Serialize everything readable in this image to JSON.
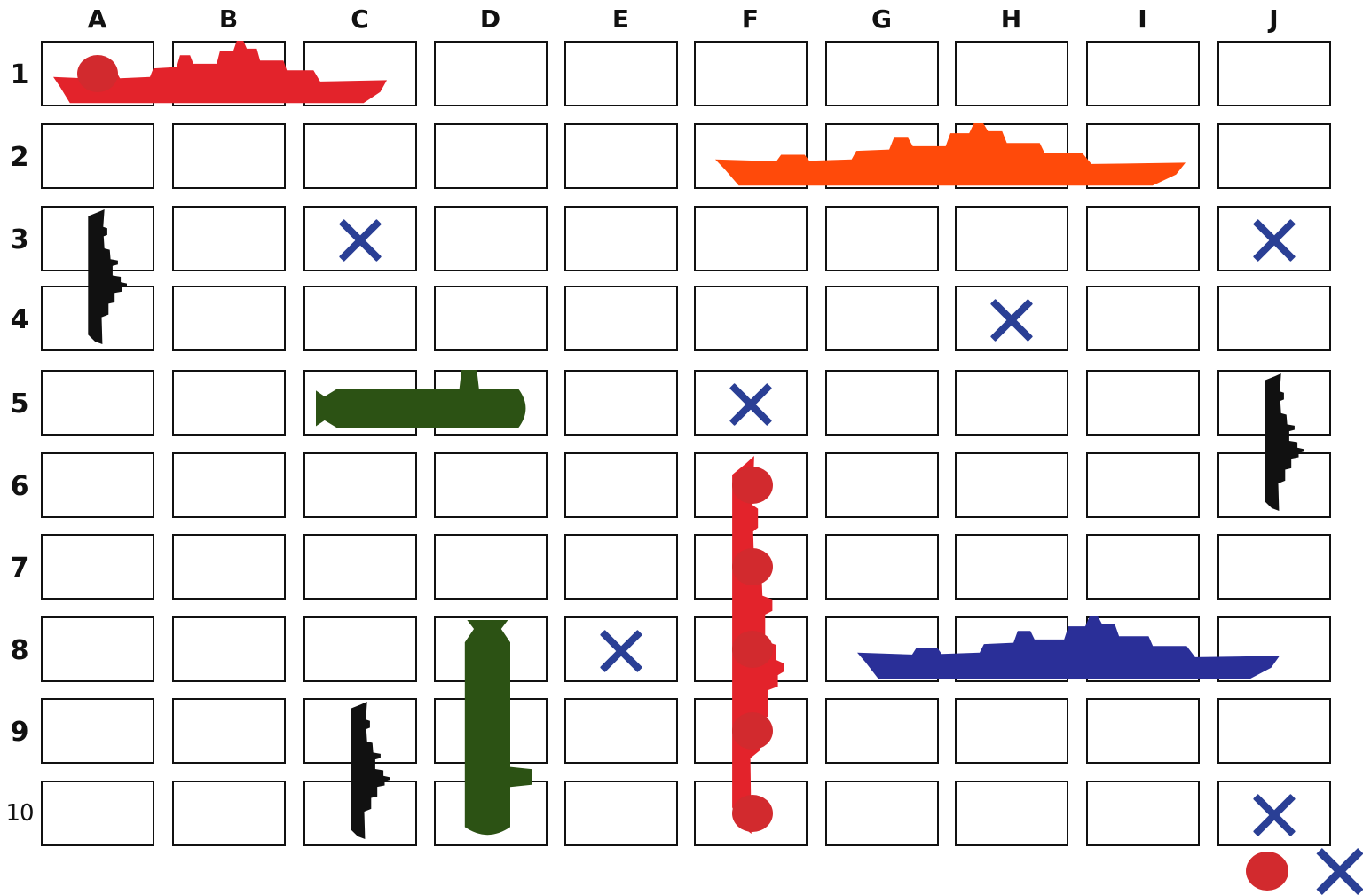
{
  "board": {
    "columns": [
      "A",
      "B",
      "C",
      "D",
      "E",
      "F",
      "G",
      "H",
      "I",
      "J"
    ],
    "rows": [
      "1",
      "2",
      "3",
      "4",
      "5",
      "6",
      "7",
      "8",
      "9",
      "10"
    ]
  },
  "ships": [
    {
      "name": "battleship",
      "color": "#e3232b",
      "cells": [
        "A1",
        "B1",
        "C1"
      ],
      "orientation": "horizontal"
    },
    {
      "name": "carrier",
      "color": "#ff4a0a",
      "cells": [
        "F2",
        "G2",
        "H2",
        "I2"
      ],
      "orientation": "horizontal"
    },
    {
      "name": "destroyer",
      "color": "#111111",
      "cells": [
        "A3",
        "A4"
      ],
      "orientation": "vertical"
    },
    {
      "name": "submarine",
      "color": "#2c5214",
      "cells": [
        "C5",
        "D5"
      ],
      "orientation": "horizontal"
    },
    {
      "name": "destroyer",
      "color": "#111111",
      "cells": [
        "J5",
        "J6"
      ],
      "orientation": "vertical"
    },
    {
      "name": "battleship",
      "color": "#e3232b",
      "cells": [
        "F6",
        "F7",
        "F8",
        "F9",
        "F10"
      ],
      "orientation": "vertical"
    },
    {
      "name": "cruiser",
      "color": "#2a2f98",
      "cells": [
        "G8",
        "H8",
        "I8",
        "J8"
      ],
      "orientation": "horizontal"
    },
    {
      "name": "submarine",
      "color": "#2c5214",
      "cells": [
        "D8",
        "D9",
        "D10"
      ],
      "orientation": "vertical"
    },
    {
      "name": "destroyer",
      "color": "#111111",
      "cells": [
        "C9",
        "C10"
      ],
      "orientation": "vertical"
    }
  ],
  "hits": [
    "A1",
    "F6",
    "F7",
    "F8",
    "F9",
    "F10"
  ],
  "misses": [
    "C3",
    "J3",
    "H4",
    "F5",
    "E8",
    "J10"
  ],
  "colors": {
    "hit": "#d22a2e",
    "miss": "#2a3f95",
    "grid": "#111111"
  }
}
